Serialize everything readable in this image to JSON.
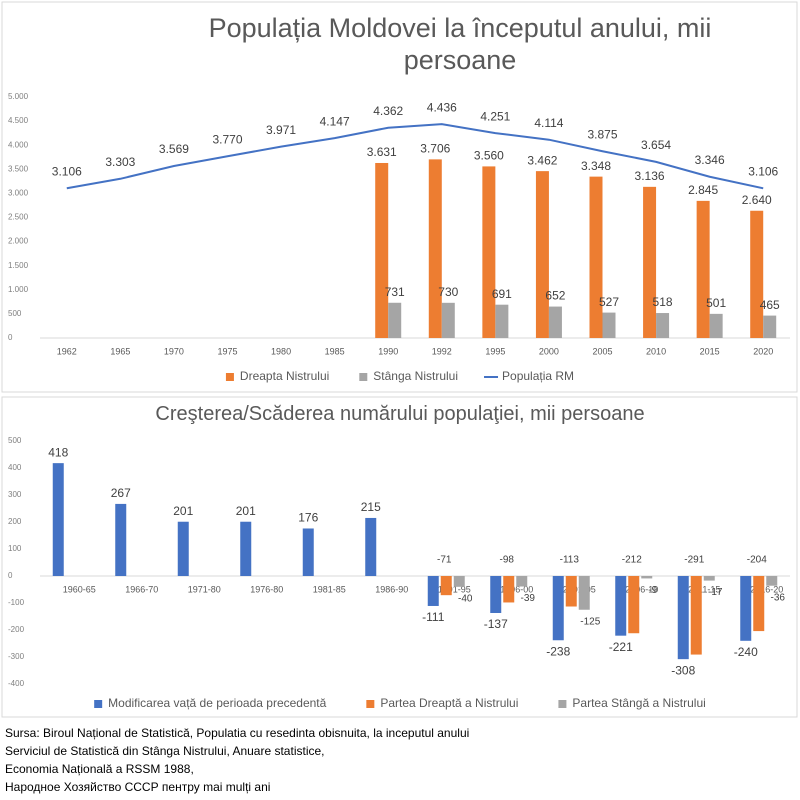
{
  "chart_data": [
    {
      "type": "bar",
      "title": "Populația Moldovei la începutul anului, mii persoane",
      "categories": [
        "1962",
        "1965",
        "1970",
        "1975",
        "1980",
        "1985",
        "1990",
        "1992",
        "1995",
        "2000",
        "2005",
        "2010",
        "2015",
        "2020"
      ],
      "series": [
        {
          "name": "Dreapta Nistrului",
          "type": "bar",
          "color": "#ed7d31",
          "values": [
            null,
            null,
            null,
            null,
            null,
            null,
            3631,
            3706,
            3560,
            3462,
            3348,
            3136,
            2845,
            2640
          ],
          "value_labels": [
            null,
            null,
            null,
            null,
            null,
            null,
            "3.631",
            "3.706",
            "3.560",
            "3.462",
            "3.348",
            "3.136",
            "2.845",
            "2.640"
          ]
        },
        {
          "name": "Stânga Nistrului",
          "type": "bar",
          "color": "#a5a5a5",
          "values": [
            null,
            null,
            null,
            null,
            null,
            null,
            731,
            730,
            691,
            652,
            527,
            518,
            501,
            465
          ]
        },
        {
          "name": "Populația RM",
          "type": "line",
          "color": "#4472c4",
          "values": [
            3106,
            3303,
            3569,
            3770,
            3971,
            4147,
            4362,
            4436,
            4251,
            4114,
            3875,
            3654,
            3346,
            3106
          ],
          "value_labels": [
            "3.106",
            "3.303",
            "3.569",
            "3.770",
            "3.971",
            "4.147",
            "4.362",
            "4.436",
            "4.251",
            "4.114",
            "3.875",
            "3.654",
            "3.346",
            "3.106"
          ]
        }
      ],
      "ylim": [
        0,
        5000
      ],
      "yticks": [
        0,
        500,
        {
          "value": 1000,
          "label": "1.000"
        },
        {
          "value": 1500,
          "label": "1.500"
        },
        {
          "value": 2000,
          "label": "2.000"
        },
        {
          "value": 2500,
          "label": "2.500"
        },
        {
          "value": 3000,
          "label": "3.000"
        },
        {
          "value": 3500,
          "label": "3.500"
        },
        {
          "value": 4000,
          "label": "4.000"
        },
        {
          "value": 4500,
          "label": "4.500"
        },
        {
          "value": 5000,
          "label": "5.000"
        }
      ]
    },
    {
      "type": "bar",
      "title": "Creşterea/Scăderea numărului populaţiei, mii persoane",
      "categories": [
        "1960-65",
        "1966-70",
        "1971-80",
        "1976-80",
        "1981-85",
        "1986-90",
        "1991-95",
        "1996-00",
        "2001-05",
        "2006-10",
        "2011-15",
        "2016-20"
      ],
      "series": [
        {
          "name": "Modificarea vață de perioada precedentă",
          "type": "bar",
          "color": "#4472c4",
          "values": [
            418,
            267,
            201,
            201,
            176,
            215,
            -111,
            -137,
            -238,
            -221,
            -308,
            -240
          ]
        },
        {
          "name": "Partea Dreaptă a Nistrului",
          "type": "bar",
          "color": "#ed7d31",
          "values": [
            null,
            null,
            null,
            null,
            null,
            null,
            -71,
            -98,
            -113,
            -212,
            -291,
            -204
          ]
        },
        {
          "name": "Partea Stângă a Nistrului",
          "type": "bar",
          "color": "#a5a5a5",
          "values": [
            null,
            null,
            null,
            null,
            null,
            null,
            -40,
            -39,
            -125,
            -9,
            -17,
            -36
          ]
        }
      ],
      "ylim": [
        -400,
        500
      ],
      "yticks": [
        -400,
        -300,
        -200,
        -100,
        0,
        100,
        200,
        300,
        400,
        500
      ]
    }
  ],
  "source": [
    "Sursa: Biroul Național de Statistică, Populatia cu resedinta obisnuita, la inceputul anului",
    "Serviciul de Statistică din Stânga Nistrului, Anuare statistice,",
    "Economia Națională a RSSM 1988,",
    "Народное Хозяйство СССР пентру mai mulți ani"
  ]
}
